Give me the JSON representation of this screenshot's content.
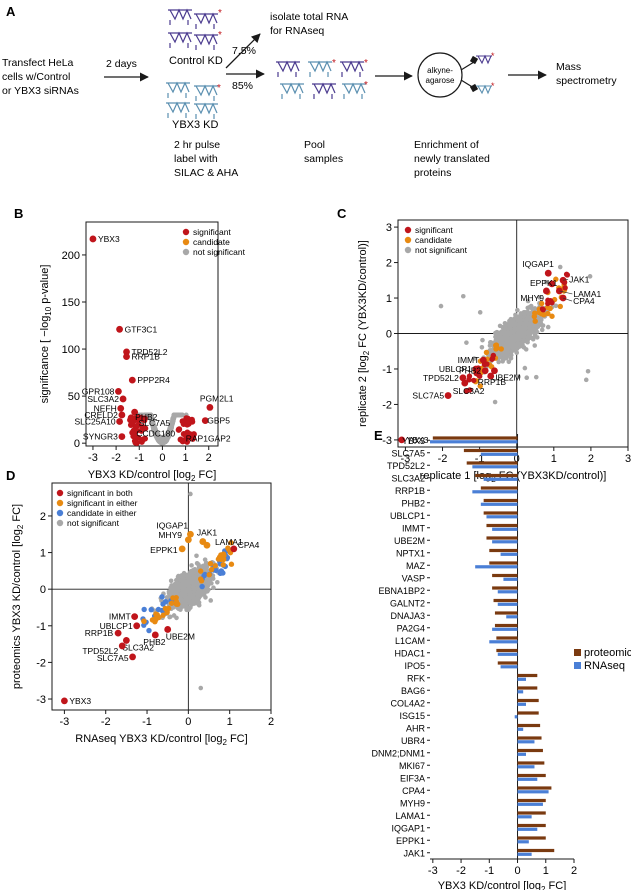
{
  "panel_labels": {
    "a": "A",
    "b": "B",
    "c": "C",
    "d": "D",
    "e": "E"
  },
  "workflow": {
    "transfect_lines": [
      "Transfect HeLa",
      "cells w/Control",
      "or YBX3 siRNAs"
    ],
    "days": "2 days",
    "control": "Control KD",
    "ybx3": "YBX3 KD",
    "pulse_lines": [
      "2 hr pulse",
      "label with",
      "SILAC & AHA"
    ],
    "isolate_lines": [
      "isolate total RNA",
      "for RNAseq"
    ],
    "pct_top": "7.5%",
    "pct_bottom": "85%",
    "pool_lines": [
      "Pool",
      "samples"
    ],
    "bead_lines": [
      "alkyne-",
      "agarose"
    ],
    "enrich_lines": [
      "Enrichment of",
      "newly translated",
      "proteins"
    ],
    "mass_lines": [
      "Mass",
      "spectrometry"
    ]
  },
  "colors": {
    "significant": "#c0151b",
    "candidate": "#e88a12",
    "candidate_rna": "#4a7fd6",
    "notsig": "#a8a8a8",
    "proteomic": "#7a3a10",
    "rnaseq": "#4a7fd6"
  },
  "chart_data": [
    {
      "id": "B",
      "type": "scatter",
      "title": "",
      "xlabel": "YBX3 KD/control [log2 FC]",
      "ylabel": "significance [ −log10 p-value]",
      "xlim": [
        -3.3,
        2.4
      ],
      "ylim": [
        -3,
        235
      ],
      "xticks": [
        -3,
        -2,
        -1,
        0,
        1,
        2
      ],
      "yticks": [
        0,
        50,
        100,
        150,
        200
      ],
      "legend": [
        "significant",
        "candidate",
        "not significant"
      ],
      "labeled_points": [
        {
          "label": "YBX3",
          "x": -3.0,
          "y": 217
        },
        {
          "label": "GTF3C1",
          "x": -1.85,
          "y": 121
        },
        {
          "label": "TPD52L2",
          "x": -1.55,
          "y": 97
        },
        {
          "label": "RRP1B",
          "x": -1.55,
          "y": 92
        },
        {
          "label": "PPP2R4",
          "x": -1.3,
          "y": 67
        },
        {
          "label": "GPR108",
          "x": -1.9,
          "y": 55
        },
        {
          "label": "SLC3A2",
          "x": -1.7,
          "y": 47
        },
        {
          "label": "NEFH",
          "x": -1.8,
          "y": 37
        },
        {
          "label": "CRELD2",
          "x": -1.75,
          "y": 30
        },
        {
          "label": "SLC25A10",
          "x": -1.85,
          "y": 23
        },
        {
          "label": "CCDC180",
          "x": -1.3,
          "y": 22
        },
        {
          "label": "SLC7A5",
          "x": -1.2,
          "y": 33
        },
        {
          "label": "PHB2",
          "x": -1.35,
          "y": 27
        },
        {
          "label": "SYNGR3",
          "x": -1.75,
          "y": 7
        },
        {
          "label": "PGM2L1",
          "x": 2.05,
          "y": 38
        },
        {
          "label": "GBP5",
          "x": 1.85,
          "y": 24
        },
        {
          "label": "RAP1GAP2",
          "x": 1.05,
          "y": 7
        }
      ]
    },
    {
      "id": "C",
      "type": "scatter",
      "xlabel": "replicate 1 [log2 FC (YBX3KD/control)]",
      "ylabel": "replicate 2 [log2 FC (YBX3KD/control)]",
      "xlim": [
        -3.2,
        3.0
      ],
      "ylim": [
        -3.2,
        3.2
      ],
      "xticks": [
        -3,
        -2,
        -1,
        0,
        1,
        2,
        3
      ],
      "yticks": [
        -3,
        -2,
        -1,
        0,
        1,
        2,
        3
      ],
      "legend": [
        "significant",
        "candidate",
        "not significant"
      ],
      "labeled_points": [
        {
          "label": "IQGAP1",
          "x": 0.85,
          "y": 1.7
        },
        {
          "label": "EPPK1",
          "x": 0.95,
          "y": 1.4
        },
        {
          "label": "MHY9",
          "x": 0.8,
          "y": 1.2
        },
        {
          "label": "JAK1",
          "x": 1.25,
          "y": 1.5
        },
        {
          "label": "LAMA1",
          "x": 1.15,
          "y": 1.2
        },
        {
          "label": "CPA4",
          "x": 1.25,
          "y": 1.0
        },
        {
          "label": "IMMT",
          "x": -0.9,
          "y": -0.75
        },
        {
          "label": "UBLCP1",
          "x": -1.1,
          "y": -1.0
        },
        {
          "label": "PHB2",
          "x": -0.85,
          "y": -1.05
        },
        {
          "label": "UBE2M",
          "x": -0.6,
          "y": -1.05
        },
        {
          "label": "RRP1B",
          "x": -0.7,
          "y": -1.2
        },
        {
          "label": "TPD52L2",
          "x": -1.45,
          "y": -1.25
        },
        {
          "label": "SLC3A2",
          "x": -1.4,
          "y": -1.4
        },
        {
          "label": "SLC7A5",
          "x": -1.85,
          "y": -1.75
        },
        {
          "label": "YBX3",
          "x": -3.1,
          "y": -3.0
        }
      ]
    },
    {
      "id": "D",
      "type": "scatter",
      "xlabel": "RNAseq YBX3 KD/control [log2 FC]",
      "ylabel": "proteomics YBX3 KD/control [log2 FC]",
      "xlim": [
        -3.3,
        2.0
      ],
      "ylim": [
        -3.3,
        2.9
      ],
      "xticks": [
        -3,
        -2,
        -1,
        0,
        1,
        2
      ],
      "yticks": [
        -3,
        -2,
        -1,
        0,
        1,
        2
      ],
      "legend": [
        "significant in both",
        "significant in either",
        "candidate in either",
        "not significant"
      ],
      "labeled_points": [
        {
          "label": "IQGAP1",
          "x": 0.05,
          "y": 1.5
        },
        {
          "label": "MHY9",
          "x": 0.0,
          "y": 1.35
        },
        {
          "label": "JAK1",
          "x": 0.35,
          "y": 1.3
        },
        {
          "label": "LAMA1",
          "x": 0.45,
          "y": 1.2
        },
        {
          "label": "EPPK1",
          "x": -0.15,
          "y": 1.1
        },
        {
          "label": "CPA4",
          "x": 1.1,
          "y": 1.1
        },
        {
          "label": "IMMT",
          "x": -1.3,
          "y": -0.75
        },
        {
          "label": "UBLCP1",
          "x": -1.25,
          "y": -1.0
        },
        {
          "label": "UBE2M",
          "x": -0.5,
          "y": -1.1
        },
        {
          "label": "PHB2",
          "x": -0.8,
          "y": -1.25
        },
        {
          "label": "RRP1B",
          "x": -1.7,
          "y": -1.2
        },
        {
          "label": "SLC3A2",
          "x": -1.5,
          "y": -1.4
        },
        {
          "label": "TPD52L2",
          "x": -1.6,
          "y": -1.55
        },
        {
          "label": "SLC7A5",
          "x": -1.35,
          "y": -1.85
        },
        {
          "label": "YBX3",
          "x": -3.0,
          "y": -3.05
        }
      ]
    },
    {
      "id": "E",
      "type": "bar",
      "orientation": "horizontal",
      "xlabel": "YBX3 KD/control [log2 FC]",
      "xlim": [
        -3.1,
        2.0
      ],
      "xticks": [
        -3,
        -2,
        -1,
        0,
        1,
        2
      ],
      "legend": [
        "proteomic",
        "RNAseq"
      ],
      "categories": [
        "YBX3",
        "SLC7A5",
        "TPD52L2",
        "SLC3A2",
        "RRP1B",
        "PHB2",
        "UBLCP1",
        "IMMT",
        "UBE2M",
        "NPTX1",
        "MAZ",
        "VASP",
        "EBNA1BP2",
        "GALNT2",
        "DNAJA3",
        "PA2G4",
        "L1CAM",
        "HDAC1",
        "IPO5",
        "RFK",
        "BAG6",
        "COL4A2",
        "ISG15",
        "AHR",
        "UBR4",
        "DNM2;DNM1",
        "MKI67",
        "EIF3A",
        "CPA4",
        "MYH9",
        "LAMA1",
        "IQGAP1",
        "EPPK1",
        "JAK1"
      ],
      "series": [
        {
          "name": "proteomic",
          "values": [
            -3.0,
            -1.9,
            -1.8,
            -1.5,
            -1.3,
            -1.2,
            -1.2,
            -1.1,
            -1.1,
            -1.0,
            -1.0,
            -0.9,
            -0.9,
            -0.85,
            -0.8,
            -0.8,
            -0.75,
            -0.75,
            -0.7,
            0.7,
            0.7,
            0.75,
            0.75,
            0.8,
            0.85,
            0.9,
            0.95,
            1.0,
            1.2,
            1.0,
            1.0,
            1.0,
            1.0,
            1.3
          ]
        },
        {
          "name": "RNAseq",
          "values": [
            -3.1,
            -1.3,
            -1.6,
            -1.2,
            -1.6,
            -1.3,
            -1.1,
            -0.9,
            -0.9,
            -0.6,
            -1.5,
            -0.5,
            -0.7,
            -0.7,
            -0.4,
            -0.9,
            -1.0,
            -0.7,
            -0.6,
            0.3,
            0.2,
            0.3,
            -0.1,
            0.2,
            0.6,
            0.3,
            0.6,
            0.7,
            1.1,
            0.9,
            0.5,
            0.7,
            0.4,
            0.5
          ]
        }
      ]
    }
  ]
}
